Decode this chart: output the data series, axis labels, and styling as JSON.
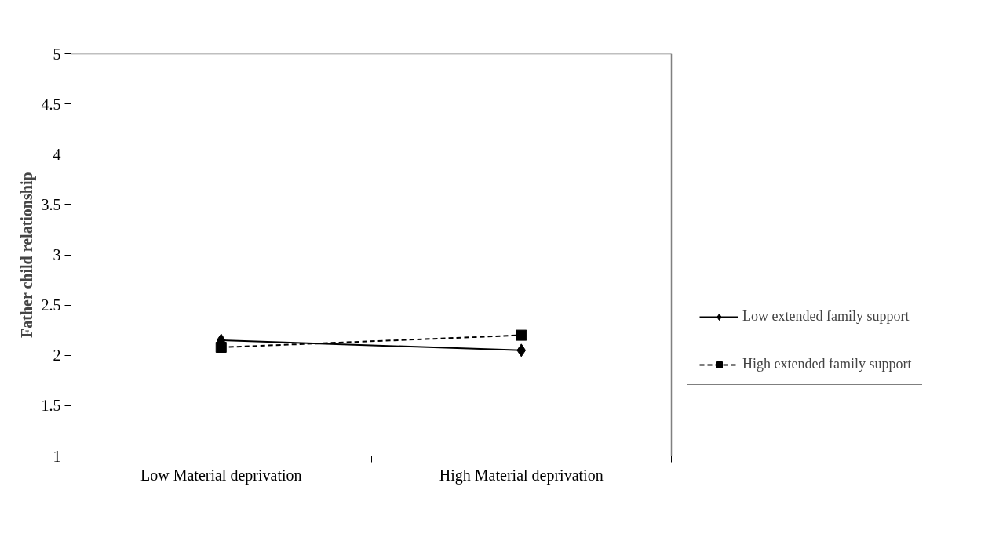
{
  "chart_data": {
    "type": "line",
    "ylabel": "Father child relationship",
    "categories": [
      "Low Material deprivation",
      "High Material deprivation"
    ],
    "series": [
      {
        "name": "Low extended family support",
        "color": "#000000",
        "values": [
          2.15,
          2.05
        ],
        "marker": "diamond",
        "line_style": "solid"
      },
      {
        "name": "High extended family support",
        "color": "#000000",
        "values": [
          2.08,
          2.2
        ],
        "marker": "square",
        "line_style": "dashed"
      }
    ],
    "ylim": [
      1,
      5
    ],
    "yticks": [
      1,
      1.5,
      2,
      2.5,
      3,
      3.5,
      4,
      4.5,
      5
    ],
    "grid": false,
    "legend": "right"
  }
}
